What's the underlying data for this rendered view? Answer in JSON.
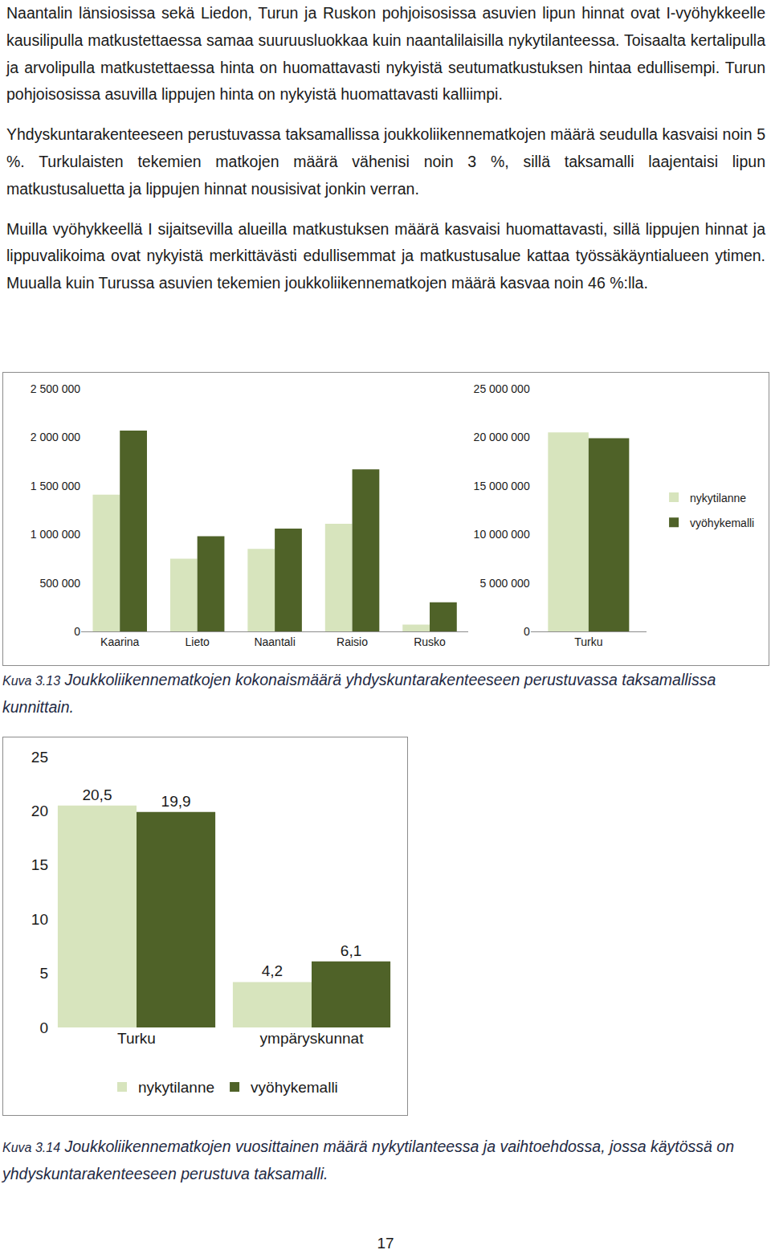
{
  "document": {
    "paragraphs": [
      "Naantalin länsiosissa sekä Liedon, Turun ja Ruskon pohjoisosissa asuvien lipun hinnat ovat I-vyöhykkeelle kausilipulla matkustettaessa samaa suuruusluokkaa kuin naantalilaisilla nykytilanteessa. Toisaalta kertalipulla ja arvolipulla matkustettaessa hinta on huomattavasti nykyistä seutumatkustuksen hintaa edullisempi. Turun pohjoisosissa asuvilla lippujen hinta on nykyistä huomattavasti kalliimpi.",
      "Yhdyskuntarakenteeseen perustuvassa taksamallissa joukkoliikennematkojen määrä seudulla kasvaisi noin 5 %. Turkulaisten tekemien matkojen määrä vähenisi noin 3 %, sillä taksamalli laajentaisi lipun matkustusaluetta ja lippujen hinnat nousisivat jonkin verran.",
      "Muilla vyöhykkeellä I sijaitsevilla alueilla matkustuksen määrä kasvaisi huomattavasti, sillä lippujen hinnat ja lippuvalikoima ovat nykyistä merkittävästi edullisemmat ja matkustusalue kattaa työssäkäyntialueen ytimen. Muualla kuin Turussa asuvien tekemien joukkoliikennematkojen määrä kasvaa noin 46 %:lla."
    ],
    "captions": [
      {
        "label": "Kuva 3.13",
        "text": "Joukkoliikennematkojen kokonaismäärä  yhdyskuntarakenteeseen perustuvassa taksamallissa kunnittain."
      },
      {
        "label": "Kuva 3.14",
        "text": "Joukkoliikennematkojen vuosittainen määrä nykytilanteessa  ja vaihtoehdossa, jossa käytössä on yhdyskuntarakenteeseen perustuva taksamalli."
      }
    ],
    "page_number": 17
  },
  "chart_data": [
    {
      "type": "bar",
      "categories": [
        "Kaarina",
        "Lieto",
        "Naantali",
        "Raisio",
        "Rusko"
      ],
      "series": [
        {
          "name": "nykytilanne",
          "color": "#d7e4bd",
          "values": [
            1410000,
            750000,
            850000,
            1110000,
            70000
          ]
        },
        {
          "name": "vyöhykemalli",
          "color": "#4f6228",
          "values": [
            2070000,
            980000,
            1060000,
            1670000,
            300000
          ]
        }
      ],
      "ylim": [
        0,
        2500000
      ],
      "yticks": [
        0,
        {
          "value": 500000,
          "label": "500 000"
        },
        {
          "value": 1000000,
          "label": "1 000 000"
        },
        {
          "value": 1500000,
          "label": "1 500 000"
        },
        {
          "value": 2000000,
          "label": "2 000 000"
        },
        {
          "value": 2500000,
          "label": "2 500 000"
        }
      ],
      "grid": false,
      "legend": "right"
    },
    {
      "type": "bar",
      "categories": [
        "Turku"
      ],
      "series": [
        {
          "name": "nykytilanne",
          "color": "#d7e4bd",
          "values": [
            20500000
          ]
        },
        {
          "name": "vyöhykemalli",
          "color": "#4f6228",
          "values": [
            19900000
          ]
        }
      ],
      "ylim": [
        0,
        25000000
      ],
      "yticks": [
        0,
        {
          "value": 5000000,
          "label": "5 000 000"
        },
        {
          "value": 10000000,
          "label": "10 000 000"
        },
        {
          "value": 15000000,
          "label": "15 000 000"
        },
        {
          "value": 20000000,
          "label": "20 000 000"
        },
        {
          "value": 25000000,
          "label": "25 000 000"
        }
      ],
      "grid": false
    },
    {
      "type": "bar",
      "categories": [
        "Turku",
        "ympäryskunnat"
      ],
      "series": [
        {
          "name": "nykytilanne",
          "color": "#d7e4bd",
          "values": [
            20.5,
            4.2
          ],
          "value_labels": [
            "20,5",
            "4,2"
          ]
        },
        {
          "name": "vyöhykemalli",
          "color": "#4f6228",
          "values": [
            19.9,
            6.1
          ],
          "value_labels": [
            "19,9",
            "6,1"
          ]
        }
      ],
      "ylim": [
        0,
        25
      ],
      "yticks": [
        0,
        5,
        10,
        15,
        20,
        25
      ],
      "grid": false,
      "data_labels": true,
      "legend": "bottom"
    }
  ]
}
